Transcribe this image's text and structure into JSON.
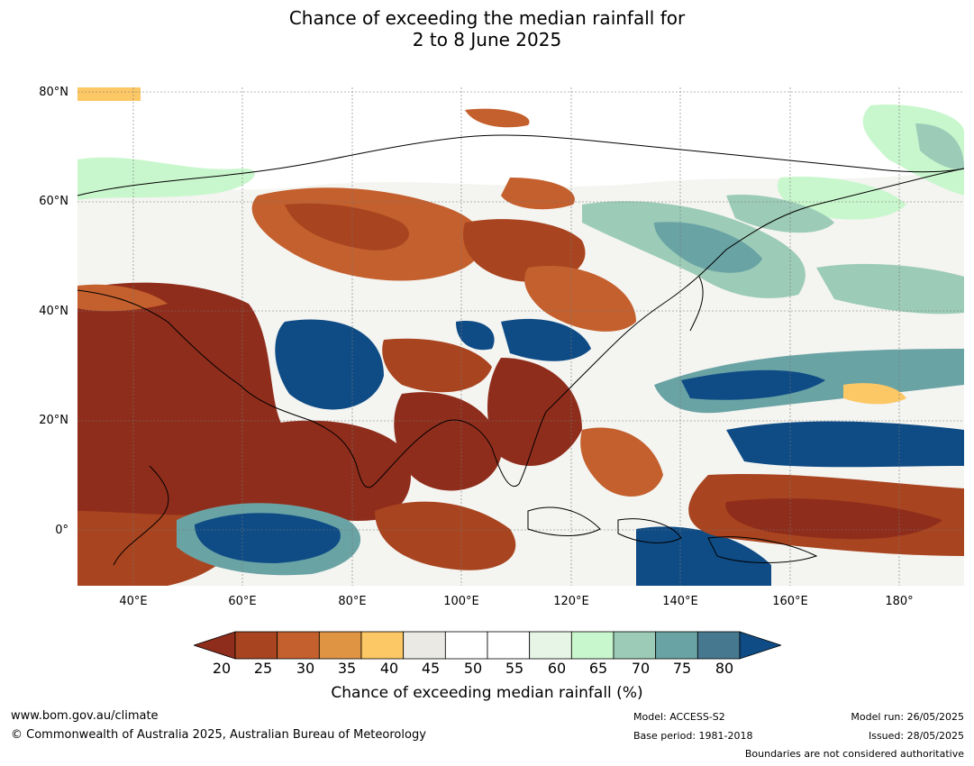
{
  "title_line1": "Chance of exceeding the median rainfall for",
  "title_line2": "2 to 8 June 2025",
  "lat_labels": [
    "80°N",
    "60°N",
    "40°N",
    "20°N",
    "0°"
  ],
  "lon_labels": [
    "40°E",
    "60°E",
    "80°E",
    "100°E",
    "120°E",
    "140°E",
    "160°E",
    "180°"
  ],
  "colorbar": {
    "ticks": [
      "20",
      "25",
      "30",
      "35",
      "40",
      "45",
      "50",
      "55",
      "60",
      "65",
      "70",
      "75",
      "80"
    ],
    "colors": [
      "#8f2d1c",
      "#a8441f",
      "#c4602e",
      "#df9444",
      "#fcc765",
      "#ebe9e3",
      "#ffffff",
      "#ffffff",
      "#e6f5e6",
      "#c9f7cd",
      "#9ccbb8",
      "#6aa3a4",
      "#46788f",
      "#0f4c85"
    ],
    "label": "Chance of exceeding median rainfall (%)"
  },
  "footer": {
    "website": "www.bom.gov.au/climate",
    "copyright": "© Commonwealth of Australia 2025, Australian Bureau of Meteorology",
    "model": "Model: ACCESS-S2",
    "base_period": "Base period: 1981-2018",
    "model_run": "Model run: 26/05/2025",
    "issued": "Issued: 28/05/2025",
    "disclaimer": "Boundaries are not considered authoritative"
  }
}
